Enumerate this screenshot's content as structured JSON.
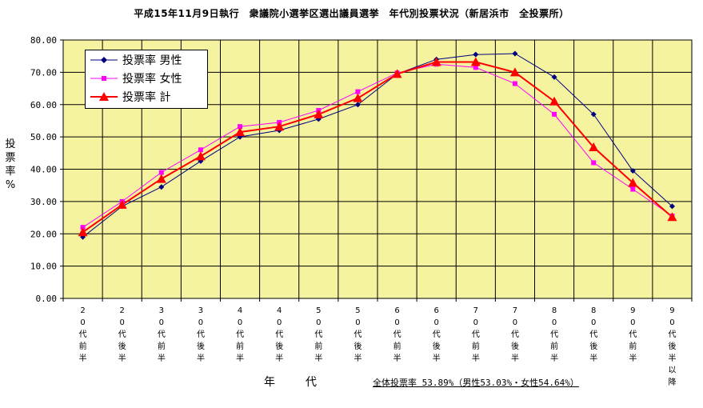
{
  "title": "平成15年11月9日執行　衆議院小選挙区選出議員選挙　年代別投票状況（新居浜市　全投票所）",
  "footnote": "全体投票率 53.89%（男性53.03%・女性54.64%）",
  "chart_data": {
    "type": "line",
    "title": "平成15年11月9日執行　衆議院小選挙区選出議員選挙　年代別投票状況（新居浜市　全投票所）",
    "xlabel": "年　代",
    "ylabel": "投票率 %",
    "ylabel_chars": [
      "投",
      "票",
      "率",
      "%"
    ],
    "ylim": [
      0,
      80
    ],
    "yticks": [
      "0.00",
      "10.00",
      "20.00",
      "30.00",
      "40.00",
      "50.00",
      "60.00",
      "70.00",
      "80.00"
    ],
    "grid": true,
    "legend_position": "top-left",
    "plot_background": "#f5f3a0",
    "categories": [
      "20代前半",
      "20代後半",
      "30代前半",
      "30代後半",
      "40代前半",
      "40代後半",
      "50代前半",
      "50代後半",
      "60代前半",
      "60代後半",
      "70代前半",
      "70代後半",
      "80代前半",
      "80代後半",
      "90代前半",
      "90代後半以降"
    ],
    "category_labels": [
      [
        "2",
        "0",
        "代",
        "前",
        "半"
      ],
      [
        "2",
        "0",
        "代",
        "後",
        "半"
      ],
      [
        "3",
        "0",
        "代",
        "前",
        "半"
      ],
      [
        "3",
        "0",
        "代",
        "後",
        "半"
      ],
      [
        "4",
        "0",
        "代",
        "前",
        "半"
      ],
      [
        "4",
        "0",
        "代",
        "後",
        "半"
      ],
      [
        "5",
        "0",
        "代",
        "前",
        "半"
      ],
      [
        "5",
        "0",
        "代",
        "後",
        "半"
      ],
      [
        "6",
        "0",
        "代",
        "前",
        "半"
      ],
      [
        "6",
        "0",
        "代",
        "後",
        "半"
      ],
      [
        "7",
        "0",
        "代",
        "前",
        "半"
      ],
      [
        "7",
        "0",
        "代",
        "後",
        "半"
      ],
      [
        "8",
        "0",
        "代",
        "前",
        "半"
      ],
      [
        "8",
        "0",
        "代",
        "後",
        "半"
      ],
      [
        "9",
        "0",
        "代",
        "前",
        "半"
      ],
      [
        "9",
        "0",
        "代",
        "後",
        "半",
        "以",
        "降"
      ]
    ],
    "series": [
      {
        "name": "投票率 男性",
        "color": "#000080",
        "marker": "diamond",
        "values": [
          19.0,
          28.5,
          34.5,
          42.5,
          50.0,
          52.0,
          55.5,
          60.0,
          69.5,
          74.0,
          75.5,
          75.8,
          68.5,
          57.0,
          39.5,
          28.5
        ]
      },
      {
        "name": "投票率 女性",
        "color": "#ff00ff",
        "marker": "square",
        "values": [
          22.0,
          30.0,
          39.0,
          46.0,
          53.2,
          54.5,
          58.2,
          64.0,
          69.8,
          72.5,
          71.5,
          66.5,
          57.0,
          42.0,
          33.8,
          25.5
        ]
      },
      {
        "name": "投票率 計",
        "color": "#ff0000",
        "marker": "triangle",
        "values": [
          20.5,
          29.0,
          37.0,
          44.0,
          51.5,
          53.2,
          57.0,
          62.0,
          69.5,
          73.2,
          73.2,
          70.0,
          61.0,
          46.8,
          35.8,
          25.2
        ]
      }
    ]
  }
}
